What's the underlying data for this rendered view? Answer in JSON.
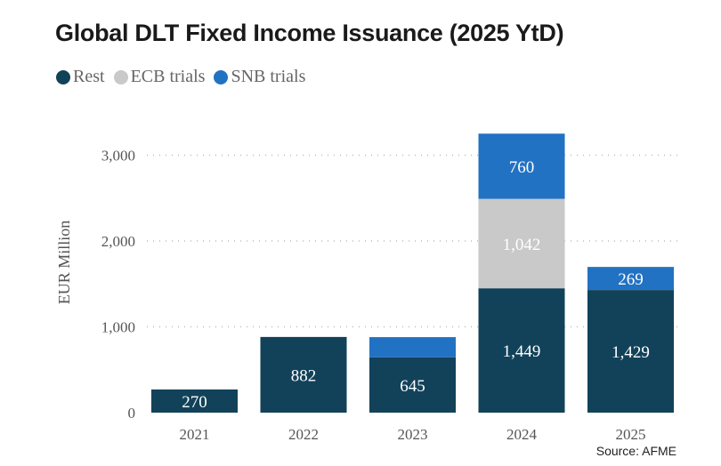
{
  "chart_data": {
    "type": "bar",
    "stacked": true,
    "title": "Global DLT Fixed Income Issuance (2025 YtD)",
    "ylabel": "EUR Million",
    "xlabel": "",
    "categories": [
      "2021",
      "2022",
      "2023",
      "2024",
      "2025"
    ],
    "series": [
      {
        "name": "Rest",
        "color": "#12425a",
        "values": [
          270,
          882,
          645,
          1449,
          1429
        ],
        "labels": [
          "270",
          "882",
          "645",
          "1,449",
          "1,429"
        ]
      },
      {
        "name": "ECB trials",
        "color": "#c9c9c9",
        "values": [
          0,
          0,
          0,
          1042,
          0
        ],
        "labels": [
          "",
          "",
          "",
          "1,042",
          ""
        ]
      },
      {
        "name": "SNB trials",
        "color": "#2272c3",
        "values": [
          0,
          0,
          235,
          760,
          269
        ],
        "labels": [
          "",
          "",
          "",
          "760",
          "269"
        ]
      }
    ],
    "ylim": [
      0,
      3300
    ],
    "yticks": [
      0,
      1000,
      2000,
      3000
    ],
    "ytick_labels": [
      "0",
      "1,000",
      "2,000",
      "3,000"
    ],
    "grid": true,
    "legend_position": "top-left",
    "source": "Source: AFME"
  }
}
